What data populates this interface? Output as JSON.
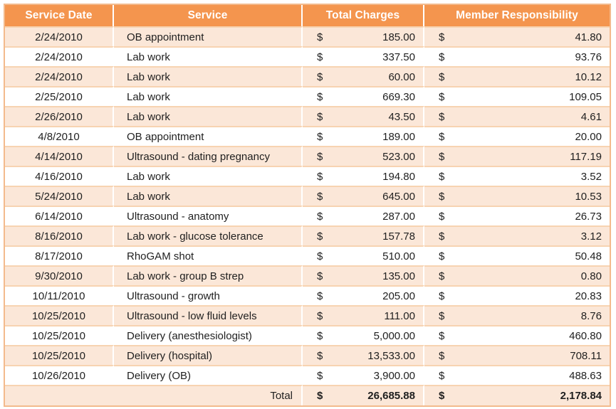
{
  "table": {
    "currency_symbol": "$",
    "columns": [
      "Service Date",
      "Service",
      "Total Charges",
      "Member Responsibility"
    ],
    "rows": [
      {
        "date": "2/24/2010",
        "service": "OB appointment",
        "charges": "185.00",
        "member": "41.80"
      },
      {
        "date": "2/24/2010",
        "service": "Lab work",
        "charges": "337.50",
        "member": "93.76"
      },
      {
        "date": "2/24/2010",
        "service": "Lab work",
        "charges": "60.00",
        "member": "10.12"
      },
      {
        "date": "2/25/2010",
        "service": "Lab work",
        "charges": "669.30",
        "member": "109.05"
      },
      {
        "date": "2/26/2010",
        "service": "Lab work",
        "charges": "43.50",
        "member": "4.61"
      },
      {
        "date": "4/8/2010",
        "service": "OB appointment",
        "charges": "189.00",
        "member": "20.00"
      },
      {
        "date": "4/14/2010",
        "service": "Ultrasound - dating pregnancy",
        "charges": "523.00",
        "member": "117.19"
      },
      {
        "date": "4/16/2010",
        "service": "Lab work",
        "charges": "194.80",
        "member": "3.52"
      },
      {
        "date": "5/24/2010",
        "service": "Lab work",
        "charges": "645.00",
        "member": "10.53"
      },
      {
        "date": "6/14/2010",
        "service": "Ultrasound - anatomy",
        "charges": "287.00",
        "member": "26.73"
      },
      {
        "date": "8/16/2010",
        "service": "Lab work - glucose tolerance",
        "charges": "157.78",
        "member": "3.12"
      },
      {
        "date": "8/17/2010",
        "service": "RhoGAM shot",
        "charges": "510.00",
        "member": "50.48"
      },
      {
        "date": "9/30/2010",
        "service": "Lab work - group B strep",
        "charges": "135.00",
        "member": "0.80"
      },
      {
        "date": "10/11/2010",
        "service": "Ultrasound - growth",
        "charges": "205.00",
        "member": "20.83"
      },
      {
        "date": "10/25/2010",
        "service": "Ultrasound - low fluid levels",
        "charges": "111.00",
        "member": "8.76"
      },
      {
        "date": "10/25/2010",
        "service": "Delivery (anesthesiologist)",
        "charges": "5,000.00",
        "member": "460.80"
      },
      {
        "date": "10/25/2010",
        "service": "Delivery (hospital)",
        "charges": "13,533.00",
        "member": "708.11"
      },
      {
        "date": "10/26/2010",
        "service": "Delivery (OB)",
        "charges": "3,900.00",
        "member": "488.63"
      }
    ],
    "total": {
      "label": "Total",
      "charges": "26,685.88",
      "member": "2,178.84"
    }
  },
  "colors": {
    "header_bg": "#F4954E",
    "header_text": "#FFFFFF",
    "row_alt_bg": "#FBE7D8",
    "row_bg": "#FFFFFF",
    "outer_border": "#F3BA8C",
    "row_line": "#F7D3B1",
    "text": "#1F1F1F"
  }
}
